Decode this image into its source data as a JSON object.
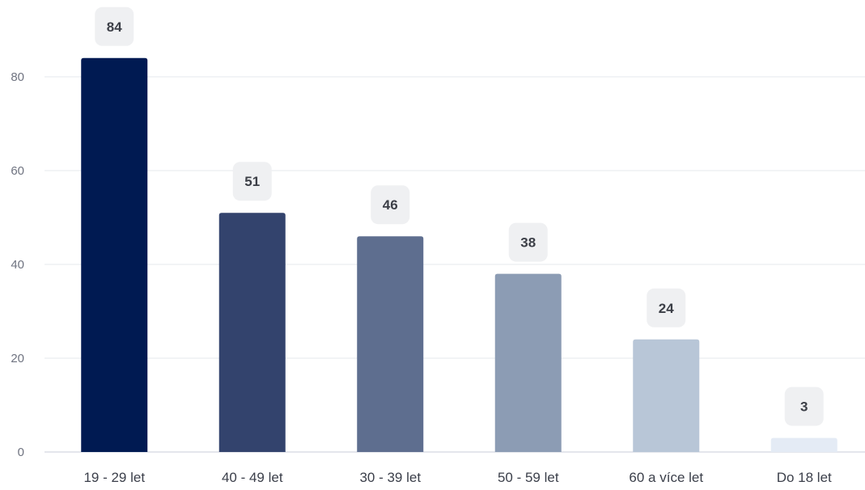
{
  "chart_data": {
    "type": "bar",
    "title": "",
    "xlabel": "",
    "ylabel": "",
    "categories": [
      "19 - 29 let",
      "40 - 49 let",
      "30 - 39 let",
      "50 - 59 let",
      "60 a více let",
      "Do 18 let"
    ],
    "values": [
      84,
      51,
      46,
      38,
      24,
      3
    ],
    "data_labels": [
      "84",
      "51",
      "46",
      "38",
      "24",
      "3"
    ],
    "yticks": [
      0,
      20,
      40,
      60,
      80
    ],
    "ytick_labels": [
      "0",
      "20",
      "40",
      "60",
      "80"
    ],
    "ylim": [
      0,
      90
    ],
    "grid": true,
    "legend": "none",
    "colors": [
      "#001a52",
      "#33436d",
      "#5e6e8f",
      "#8c9cb4",
      "#b8c6d7",
      "#e4ebf5"
    ]
  }
}
